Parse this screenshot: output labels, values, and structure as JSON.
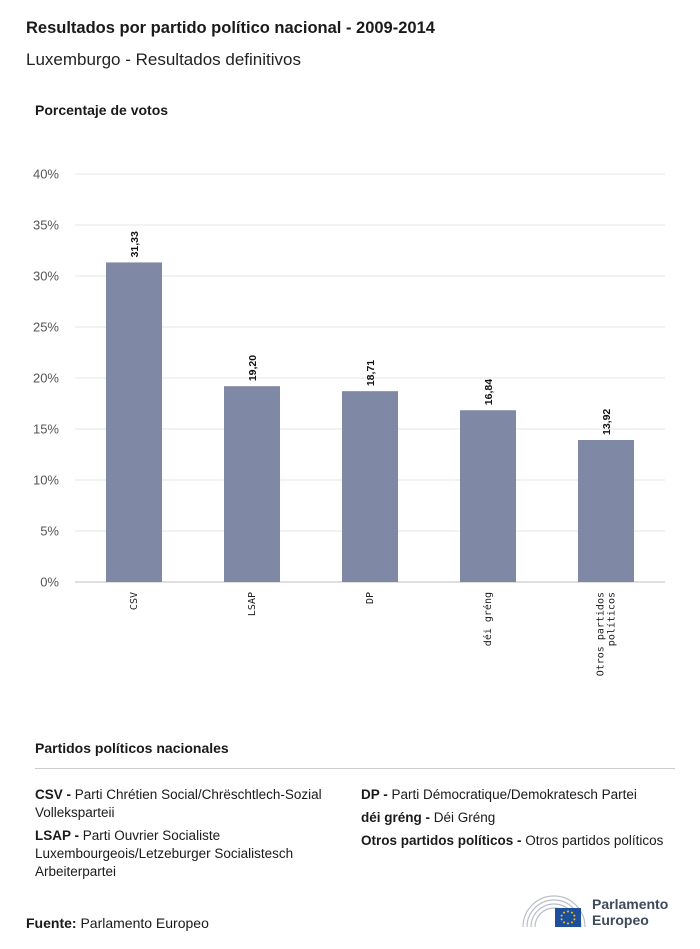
{
  "header": {
    "title": "Resultados por partido político nacional - 2009-2014",
    "subtitle": "Luxemburgo - Resultados definitivos"
  },
  "chart_data": {
    "type": "bar",
    "ylabel": "Porcentaje de votos",
    "categories": [
      "CSV",
      "LSAP",
      "DP",
      "déi gréng",
      "Otros partidos políticos"
    ],
    "category_lines": [
      [
        "CSV"
      ],
      [
        "LSAP"
      ],
      [
        "DP"
      ],
      [
        "déi gréng"
      ],
      [
        "Otros partidos",
        "políticos"
      ]
    ],
    "values": [
      31.33,
      19.2,
      18.71,
      16.84,
      13.92
    ],
    "value_labels": [
      "31,33",
      "19,20",
      "18,71",
      "16,84",
      "13,92"
    ],
    "ylim": [
      0,
      40
    ],
    "yticks": [
      0,
      5,
      10,
      15,
      20,
      25,
      30,
      35,
      40
    ],
    "ytick_labels": [
      "0%",
      "5%",
      "10%",
      "15%",
      "20%",
      "25%",
      "30%",
      "35%",
      "40%"
    ],
    "bar_color": "#7f89a6",
    "grid": true
  },
  "legend": {
    "title": "Partidos políticos nacionales",
    "left": [
      {
        "abbr": "CSV -",
        "name": "Parti Chrétien Social/Chrëschtlech-Sozial Volleksparteii"
      },
      {
        "abbr": "LSAP -",
        "name": "Parti Ouvrier Socialiste Luxembourgeois/Letzeburger Socialistesch Arbeiterpartei"
      }
    ],
    "right": [
      {
        "abbr": "DP -",
        "name": "Parti Démocratique/Demokratesch Partei"
      },
      {
        "abbr": "déi gréng -",
        "name": "Déi Gréng"
      },
      {
        "abbr": "Otros partidos políticos -",
        "name": "Otros partidos políticos"
      }
    ]
  },
  "footer": {
    "source_label": "Fuente:",
    "source_value": "Parlamento Europeo",
    "logo_line1": "Parlamento",
    "logo_line2": "Europeo"
  }
}
